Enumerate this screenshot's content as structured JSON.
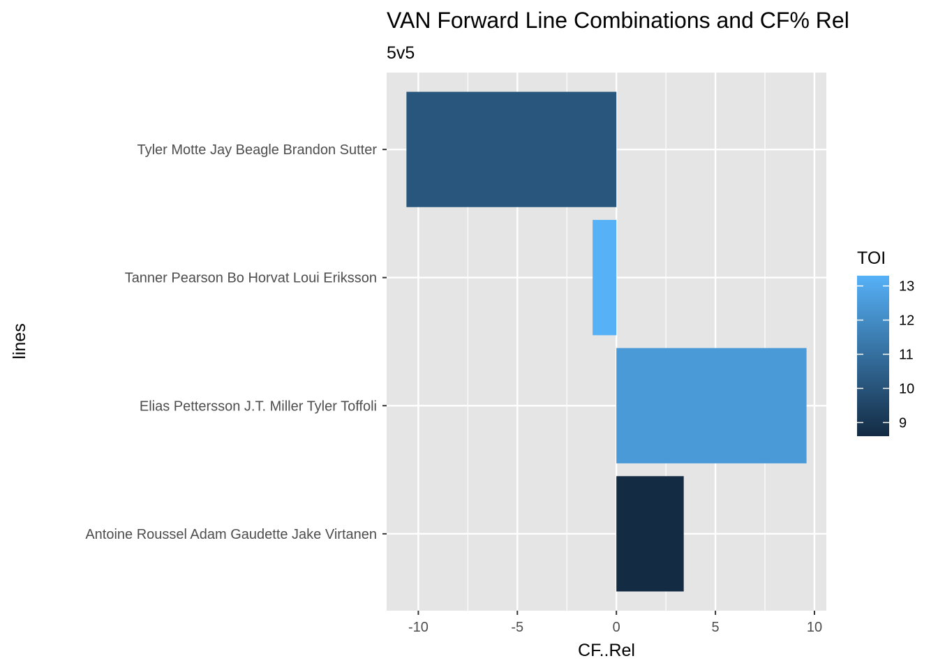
{
  "chart_data": {
    "type": "bar",
    "orientation": "horizontal",
    "title": "VAN Forward Line Combinations and CF% Rel",
    "subtitle": "5v5",
    "xlabel": "CF..Rel",
    "ylabel": "lines",
    "xlim": [
      -11.6,
      10.6
    ],
    "x_ticks": [
      -10,
      -5,
      0,
      5,
      10
    ],
    "x_tick_labels": [
      "-10",
      "-5",
      "0",
      "5",
      "10"
    ],
    "categories": [
      "Tyler Motte Jay Beagle Brandon Sutter",
      "Tanner Pearson Bo Horvat Loui Eriksson",
      "Elias Pettersson J.T. Miller Tyler Toffoli",
      "Antoine Roussel Adam Gaudette Jake Virtanen"
    ],
    "values": [
      -10.6,
      -1.2,
      9.6,
      3.4
    ],
    "fill": {
      "name": "TOI",
      "values": [
        10.1,
        13.3,
        12.5,
        8.6
      ],
      "range": [
        8.6,
        13.3
      ],
      "ticks": [
        9,
        10,
        11,
        12,
        13
      ],
      "low_color": "#132B43",
      "high_color": "#56B1F7"
    },
    "grid": true,
    "legend_position": "right",
    "panel_background": "#E5E5E5"
  }
}
